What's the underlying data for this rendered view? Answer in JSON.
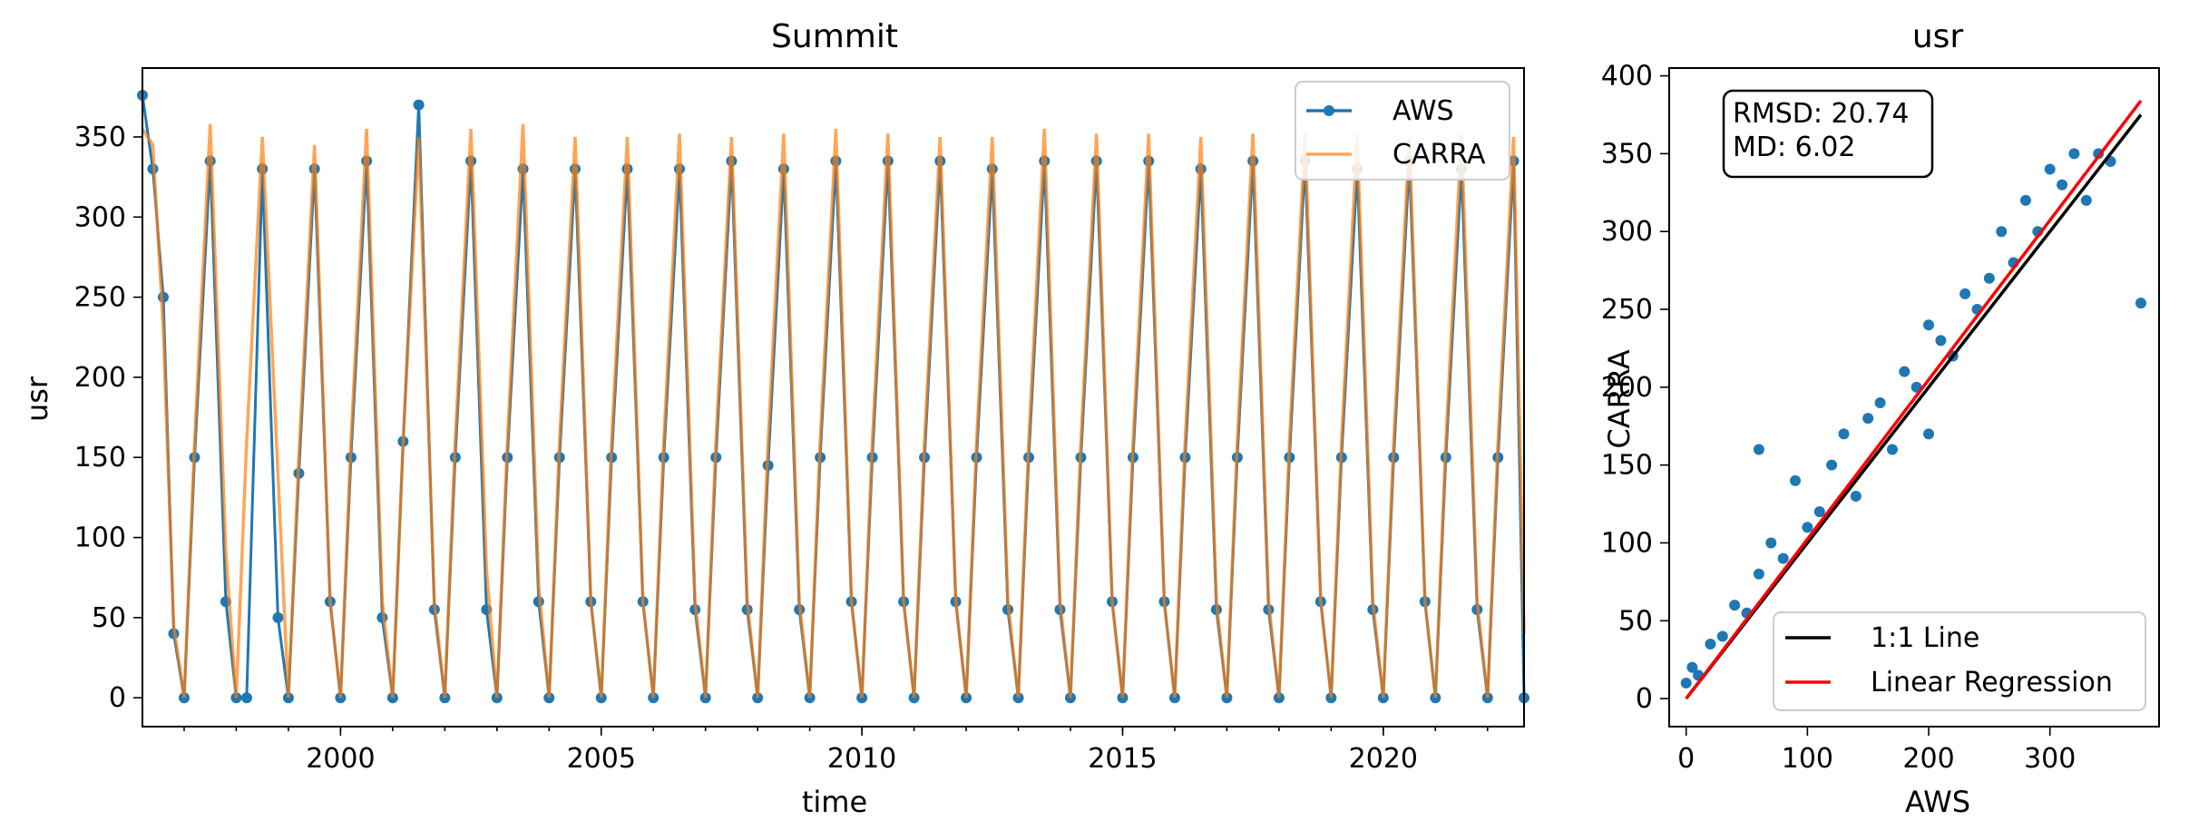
{
  "chart_data": [
    {
      "type": "line",
      "title": "Summit",
      "xlabel": "time",
      "ylabel": "usr",
      "xlim": [
        1996.2,
        2022.7
      ],
      "ylim": [
        -18,
        393
      ],
      "xticks": [
        2000,
        2005,
        2010,
        2015,
        2020
      ],
      "xtick_labels": [
        "2000",
        "2005",
        "2010",
        "2015",
        "2020"
      ],
      "yticks": [
        0,
        50,
        100,
        150,
        200,
        250,
        300,
        350
      ],
      "yticks_labels": [
        "0",
        "50",
        "100",
        "150",
        "200",
        "250",
        "300",
        "350"
      ],
      "legend_position": "top-right",
      "grid": false,
      "series": [
        {
          "name": "AWS",
          "color": "#1f77b4",
          "marker": "circle",
          "x": [
            1996.2,
            1996.4,
            1996.6,
            1996.8,
            1997.0,
            1997.2,
            1997.5,
            1997.8,
            1998.0,
            1998.2,
            1998.5,
            1998.8,
            1999.0,
            1999.2,
            1999.5,
            1999.8,
            2000.0,
            2000.2,
            2000.5,
            2000.8,
            2001.0,
            2001.2,
            2001.5,
            2001.8,
            2002.0,
            2002.2,
            2002.5,
            2002.8,
            2003.0,
            2003.2,
            2003.5,
            2003.8,
            2004.0,
            2004.2,
            2004.5,
            2004.8,
            2005.0,
            2005.2,
            2005.5,
            2005.8,
            2006.0,
            2006.2,
            2006.5,
            2006.8,
            2007.0,
            2007.2,
            2007.5,
            2007.8,
            2008.0,
            2008.2,
            2008.5,
            2008.8,
            2009.0,
            2009.2,
            2009.5,
            2009.8,
            2010.0,
            2010.2,
            2010.5,
            2010.8,
            2011.0,
            2011.2,
            2011.5,
            2011.8,
            2012.0,
            2012.2,
            2012.5,
            2012.8,
            2013.0,
            2013.2,
            2013.5,
            2013.8,
            2014.0,
            2014.2,
            2014.5,
            2014.8,
            2015.0,
            2015.2,
            2015.5,
            2015.8,
            2016.0,
            2016.2,
            2016.5,
            2016.8,
            2017.0,
            2017.2,
            2017.5,
            2017.8,
            2018.0,
            2018.2,
            2018.5,
            2018.8,
            2019.0,
            2019.2,
            2019.5,
            2019.8,
            2020.0,
            2020.2,
            2020.5,
            2020.8,
            2021.0,
            2021.2,
            2021.5,
            2021.8,
            2022.0,
            2022.2,
            2022.5,
            2022.7
          ],
          "values": [
            376,
            330,
            250,
            40,
            0,
            150,
            335,
            60,
            0,
            0,
            330,
            50,
            0,
            140,
            330,
            60,
            0,
            150,
            335,
            50,
            0,
            160,
            370,
            55,
            0,
            150,
            335,
            55,
            0,
            150,
            330,
            60,
            0,
            150,
            330,
            60,
            0,
            150,
            330,
            60,
            0,
            150,
            330,
            55,
            0,
            150,
            335,
            55,
            0,
            145,
            330,
            55,
            0,
            150,
            335,
            60,
            0,
            150,
            335,
            60,
            0,
            150,
            335,
            60,
            0,
            150,
            330,
            55,
            0,
            150,
            335,
            55,
            0,
            150,
            335,
            60,
            0,
            150,
            335,
            60,
            0,
            150,
            330,
            55,
            0,
            150,
            335,
            55,
            0,
            150,
            335,
            60,
            0,
            150,
            330,
            55,
            0,
            150,
            335,
            60,
            0,
            150,
            330,
            55,
            0,
            150,
            335,
            0
          ]
        },
        {
          "name": "CARRA",
          "color": "#ff7f0e",
          "alpha": 0.7,
          "x": [
            1996.2,
            1996.4,
            1996.6,
            1996.8,
            1997.0,
            1997.2,
            1997.5,
            1997.8,
            1998.0,
            1998.2,
            1998.5,
            1998.8,
            1999.0,
            1999.2,
            1999.5,
            1999.8,
            2000.0,
            2000.2,
            2000.5,
            2000.8,
            2001.0,
            2001.2,
            2001.5,
            2001.8,
            2002.0,
            2002.2,
            2002.5,
            2002.8,
            2003.0,
            2003.2,
            2003.5,
            2003.8,
            2004.0,
            2004.2,
            2004.5,
            2004.8,
            2005.0,
            2005.2,
            2005.5,
            2005.8,
            2006.0,
            2006.2,
            2006.5,
            2006.8,
            2007.0,
            2007.2,
            2007.5,
            2007.8,
            2008.0,
            2008.2,
            2008.5,
            2008.8,
            2009.0,
            2009.2,
            2009.5,
            2009.8,
            2010.0,
            2010.2,
            2010.5,
            2010.8,
            2011.0,
            2011.2,
            2011.5,
            2011.8,
            2012.0,
            2012.2,
            2012.5,
            2012.8,
            2013.0,
            2013.2,
            2013.5,
            2013.8,
            2014.0,
            2014.2,
            2014.5,
            2014.8,
            2015.0,
            2015.2,
            2015.5,
            2015.8,
            2016.0,
            2016.2,
            2016.5,
            2016.8,
            2017.0,
            2017.2,
            2017.5,
            2017.8,
            2018.0,
            2018.2,
            2018.5,
            2018.8,
            2019.0,
            2019.2,
            2019.5,
            2019.8,
            2020.0,
            2020.2,
            2020.5,
            2020.8,
            2021.0,
            2021.2,
            2021.5,
            2021.8,
            2022.0,
            2022.2,
            2022.5,
            2022.7
          ],
          "values": [
            355,
            345,
            230,
            45,
            0,
            160,
            358,
            90,
            0,
            160,
            350,
            140,
            0,
            150,
            345,
            60,
            0,
            160,
            355,
            60,
            0,
            160,
            350,
            60,
            0,
            160,
            355,
            80,
            0,
            160,
            358,
            70,
            0,
            160,
            350,
            60,
            0,
            160,
            350,
            60,
            0,
            160,
            352,
            60,
            0,
            160,
            350,
            60,
            0,
            160,
            352,
            60,
            0,
            160,
            355,
            60,
            0,
            160,
            352,
            60,
            0,
            160,
            350,
            60,
            0,
            160,
            350,
            60,
            0,
            160,
            355,
            60,
            0,
            160,
            352,
            60,
            0,
            160,
            352,
            60,
            0,
            160,
            350,
            60,
            0,
            160,
            352,
            60,
            0,
            160,
            352,
            60,
            0,
            160,
            352,
            60,
            0,
            160,
            350,
            60,
            0,
            160,
            352,
            60,
            0,
            160,
            350,
            40
          ]
        }
      ]
    },
    {
      "type": "scatter",
      "title": "usr",
      "xlabel": "AWS",
      "ylabel": "CARRA",
      "xlim": [
        -14,
        390
      ],
      "ylim": [
        -18,
        405
      ],
      "xticks": [
        0,
        100,
        200,
        300
      ],
      "xtick_labels": [
        "0",
        "100",
        "200",
        "300"
      ],
      "yticks": [
        0,
        50,
        100,
        150,
        200,
        250,
        300,
        350,
        400
      ],
      "ytick_labels": [
        "0",
        "50",
        "100",
        "150",
        "200",
        "250",
        "300",
        "350",
        "400"
      ],
      "stats_box": {
        "rmsd": "RMSD: 20.74",
        "md": "MD: 6.02"
      },
      "legend_position": "bottom-right",
      "grid": false,
      "scatter_color": "#1f77b4",
      "points": [
        [
          0,
          10
        ],
        [
          5,
          20
        ],
        [
          10,
          15
        ],
        [
          20,
          35
        ],
        [
          30,
          40
        ],
        [
          40,
          60
        ],
        [
          50,
          55
        ],
        [
          60,
          80
        ],
        [
          60,
          160
        ],
        [
          70,
          100
        ],
        [
          80,
          90
        ],
        [
          90,
          140
        ],
        [
          100,
          110
        ],
        [
          110,
          120
        ],
        [
          120,
          150
        ],
        [
          130,
          170
        ],
        [
          140,
          130
        ],
        [
          150,
          180
        ],
        [
          160,
          190
        ],
        [
          170,
          160
        ],
        [
          180,
          210
        ],
        [
          190,
          200
        ],
        [
          200,
          240
        ],
        [
          200,
          170
        ],
        [
          210,
          230
        ],
        [
          220,
          220
        ],
        [
          230,
          260
        ],
        [
          240,
          250
        ],
        [
          250,
          270
        ],
        [
          260,
          300
        ],
        [
          270,
          280
        ],
        [
          280,
          320
        ],
        [
          290,
          300
        ],
        [
          300,
          340
        ],
        [
          310,
          330
        ],
        [
          320,
          350
        ],
        [
          330,
          320
        ],
        [
          340,
          350
        ],
        [
          350,
          345
        ],
        [
          375,
          254
        ]
      ],
      "lines": [
        {
          "name": "1:1 Line",
          "color": "#000000",
          "x": [
            0,
            375
          ],
          "y": [
            0,
            375
          ]
        },
        {
          "name": "Linear Regression",
          "color": "#ff0000",
          "x": [
            0,
            375
          ],
          "y": [
            0,
            384
          ]
        }
      ]
    }
  ]
}
